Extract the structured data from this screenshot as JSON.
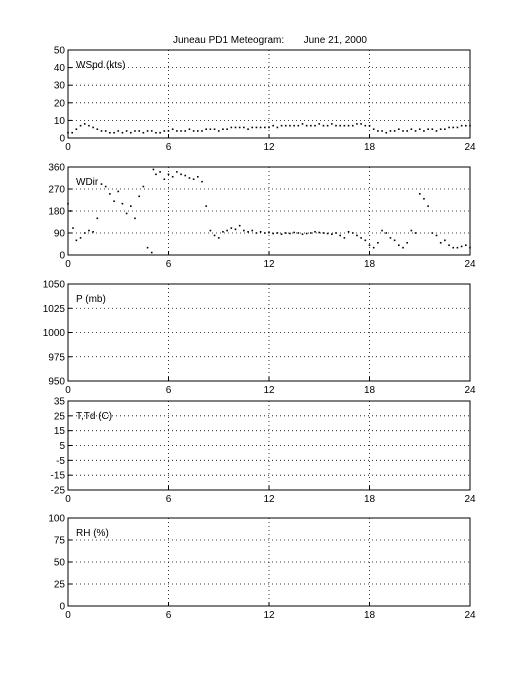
{
  "title": "Juneau PD1 Meteogram:       June 21, 2000",
  "chart_data": [
    {
      "type": "scatter",
      "label": "WSpd (kts)",
      "xlim": [
        0,
        24
      ],
      "ylim": [
        0,
        50
      ],
      "xticks": [
        0,
        6,
        12,
        18,
        24
      ],
      "yticks": [
        0,
        10,
        20,
        30,
        40,
        50
      ],
      "grid": true,
      "series": [
        {
          "x": [
            0.0,
            0.25,
            0.5,
            0.75,
            1.0,
            1.25,
            1.5,
            1.75,
            2.0,
            2.25,
            2.5,
            2.75,
            3.0,
            3.25,
            3.5,
            3.75,
            4.0,
            4.25,
            4.5,
            4.75,
            5.0,
            5.25,
            5.5,
            5.75,
            6.0,
            6.25,
            6.5,
            6.75,
            7.0,
            7.25,
            7.5,
            7.75,
            8.0,
            8.25,
            8.5,
            8.75,
            9.0,
            9.25,
            9.5,
            9.75,
            10.0,
            10.25,
            10.5,
            10.75,
            11.0,
            11.25,
            11.5,
            11.75,
            12.0,
            12.25,
            12.5,
            12.75,
            13.0,
            13.25,
            13.5,
            13.75,
            14.0,
            14.25,
            14.5,
            14.75,
            15.0,
            15.25,
            15.5,
            15.75,
            16.0,
            16.25,
            16.5,
            16.75,
            17.0,
            17.25,
            17.5,
            17.75,
            18.0,
            18.25,
            18.5,
            18.75,
            19.0,
            19.25,
            19.5,
            19.75,
            20.0,
            20.25,
            20.5,
            20.75,
            21.0,
            21.25,
            21.5,
            21.75,
            22.0,
            22.25,
            22.5,
            22.75,
            23.0,
            23.25,
            23.5,
            23.75,
            24.0
          ],
          "y": [
            3,
            3,
            5,
            7,
            8,
            7,
            6,
            5,
            4,
            4,
            3,
            3,
            4,
            3,
            4,
            3,
            4,
            4,
            3,
            4,
            4,
            3,
            3,
            4,
            4,
            5,
            4,
            4,
            4,
            5,
            4,
            4,
            4,
            5,
            5,
            5,
            4,
            5,
            5,
            6,
            6,
            6,
            6,
            5,
            6,
            6,
            6,
            6,
            6,
            7,
            6,
            7,
            7,
            7,
            7,
            7,
            8,
            7,
            7,
            7,
            8,
            7,
            7,
            8,
            7,
            7,
            7,
            7,
            7,
            8,
            8,
            7,
            7,
            5,
            4,
            4,
            3,
            4,
            4,
            5,
            4,
            4,
            5,
            4,
            5,
            4,
            5,
            5,
            4,
            5,
            5,
            6,
            6,
            6,
            7,
            7,
            7
          ]
        }
      ]
    },
    {
      "type": "scatter",
      "label": "WDir",
      "xlim": [
        0,
        24
      ],
      "ylim": [
        0,
        360
      ],
      "xticks": [
        0,
        6,
        12,
        18,
        24
      ],
      "yticks": [
        0,
        90,
        180,
        270,
        360
      ],
      "grid": true,
      "series": [
        {
          "x": [
            0.0,
            0.15,
            0.3,
            0.5,
            0.75,
            1.0,
            1.25,
            1.5,
            1.75,
            2.0,
            2.25,
            2.5,
            2.75,
            3.0,
            3.25,
            3.5,
            3.75,
            4.0,
            4.25,
            4.5,
            4.75,
            5.0,
            5.1,
            5.25,
            5.5,
            5.75,
            6.0,
            6.25,
            6.5,
            6.75,
            7.0,
            7.25,
            7.5,
            7.75,
            8.0,
            8.25,
            8.5,
            8.75,
            9.0,
            9.25,
            9.5,
            9.75,
            10.0,
            10.25,
            10.5,
            10.75,
            11.0,
            11.25,
            11.5,
            11.75,
            12.0,
            12.25,
            12.5,
            12.75,
            13.0,
            13.25,
            13.5,
            13.75,
            14.0,
            14.25,
            14.5,
            14.75,
            15.0,
            15.25,
            15.5,
            15.75,
            16.0,
            16.25,
            16.5,
            16.75,
            17.0,
            17.25,
            17.5,
            17.75,
            18.0,
            18.25,
            18.5,
            18.75,
            19.0,
            19.25,
            19.5,
            19.75,
            20.0,
            20.25,
            20.5,
            20.75,
            21.0,
            21.25,
            21.5,
            21.75,
            22.0,
            22.25,
            22.5,
            22.75,
            23.0,
            23.25,
            23.5,
            23.75,
            24.0
          ],
          "y": [
            210,
            180,
            110,
            60,
            70,
            90,
            100,
            95,
            150,
            290,
            280,
            250,
            220,
            260,
            210,
            170,
            200,
            150,
            240,
            280,
            30,
            10,
            350,
            330,
            340,
            310,
            330,
            320,
            340,
            330,
            325,
            315,
            310,
            320,
            300,
            200,
            100,
            80,
            70,
            95,
            100,
            110,
            105,
            120,
            100,
            95,
            100,
            90,
            95,
            90,
            92,
            88,
            90,
            85,
            90,
            88,
            92,
            90,
            85,
            88,
            90,
            95,
            92,
            90,
            88,
            85,
            90,
            80,
            70,
            95,
            90,
            80,
            70,
            60,
            40,
            30,
            50,
            100,
            90,
            70,
            60,
            40,
            30,
            50,
            100,
            90,
            250,
            230,
            200,
            90,
            80,
            50,
            60,
            40,
            30,
            30,
            35,
            40,
            30
          ]
        }
      ]
    },
    {
      "type": "scatter",
      "label": "P (mb)",
      "xlim": [
        0,
        24
      ],
      "ylim": [
        950,
        1050
      ],
      "xticks": [
        0,
        6,
        12,
        18,
        24
      ],
      "yticks": [
        950,
        975,
        1000,
        1025,
        1050
      ],
      "grid": true,
      "series": []
    },
    {
      "type": "scatter",
      "label": "T,Td (C)",
      "xlim": [
        0,
        24
      ],
      "ylim": [
        -25,
        35
      ],
      "xticks": [
        0,
        6,
        12,
        18,
        24
      ],
      "yticks": [
        -25,
        -15,
        -5,
        5,
        15,
        25,
        35
      ],
      "grid": true,
      "series": []
    },
    {
      "type": "scatter",
      "label": "RH (%)",
      "xlim": [
        0,
        24
      ],
      "ylim": [
        0,
        100
      ],
      "xticks": [
        0,
        6,
        12,
        18,
        24
      ],
      "yticks": [
        0,
        25,
        50,
        75,
        100
      ],
      "grid": true,
      "series": []
    }
  ]
}
